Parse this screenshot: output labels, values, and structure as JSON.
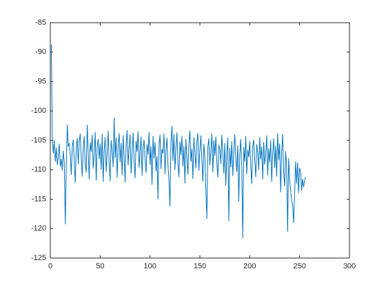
{
  "chart_data": {
    "type": "line",
    "x": [
      1,
      2,
      3,
      4,
      5,
      6,
      7,
      8,
      9,
      10,
      11,
      12,
      13,
      14,
      15,
      16,
      17,
      18,
      19,
      20,
      21,
      22,
      23,
      24,
      25,
      26,
      27,
      28,
      29,
      30,
      31,
      32,
      33,
      34,
      35,
      36,
      37,
      38,
      39,
      40,
      41,
      42,
      43,
      44,
      45,
      46,
      47,
      48,
      49,
      50,
      51,
      52,
      53,
      54,
      55,
      56,
      57,
      58,
      59,
      60,
      61,
      62,
      63,
      64,
      65,
      66,
      67,
      68,
      69,
      70,
      71,
      72,
      73,
      74,
      75,
      76,
      77,
      78,
      79,
      80,
      81,
      82,
      83,
      84,
      85,
      86,
      87,
      88,
      89,
      90,
      91,
      92,
      93,
      94,
      95,
      96,
      97,
      98,
      99,
      100,
      101,
      102,
      103,
      104,
      105,
      106,
      107,
      108,
      109,
      110,
      111,
      112,
      113,
      114,
      115,
      116,
      117,
      118,
      119,
      120,
      121,
      122,
      123,
      124,
      125,
      126,
      127,
      128,
      129,
      130,
      131,
      132,
      133,
      134,
      135,
      136,
      137,
      138,
      139,
      140,
      141,
      142,
      143,
      144,
      145,
      146,
      147,
      148,
      149,
      150,
      151,
      152,
      153,
      154,
      155,
      156,
      157,
      158,
      159,
      160,
      161,
      162,
      163,
      164,
      165,
      166,
      167,
      168,
      169,
      170,
      171,
      172,
      173,
      174,
      175,
      176,
      177,
      178,
      179,
      180,
      181,
      182,
      183,
      184,
      185,
      186,
      187,
      188,
      189,
      190,
      191,
      192,
      193,
      194,
      195,
      196,
      197,
      198,
      199,
      200,
      201,
      202,
      203,
      204,
      205,
      206,
      207,
      208,
      209,
      210,
      211,
      212,
      213,
      214,
      215,
      216,
      217,
      218,
      219,
      220,
      221,
      222,
      223,
      224,
      225,
      226,
      227,
      228,
      229,
      230,
      231,
      232,
      233,
      234,
      235,
      236,
      237,
      238,
      239,
      240,
      241,
      242,
      243,
      244,
      245,
      246,
      247,
      248,
      249,
      250,
      251,
      252,
      253,
      254,
      255,
      256
    ],
    "series": [
      {
        "color": "#0072bd",
        "values": [
          -88.7,
          -104.8,
          -107.2,
          -105.0,
          -108.6,
          -106.3,
          -109.1,
          -107.8,
          -105.6,
          -109.4,
          -108.2,
          -110.1,
          -106.8,
          -108.9,
          -119.2,
          -109.3,
          -102.4,
          -106.0,
          -105.5,
          -107.3,
          -110.8,
          -106.2,
          -104.9,
          -108.4,
          -112.2,
          -106.1,
          -104.7,
          -109.0,
          -105.2,
          -103.9,
          -107.8,
          -111.1,
          -106.5,
          -104.3,
          -108.9,
          -110.4,
          -102.4,
          -107.0,
          -111.6,
          -105.4,
          -106.9,
          -104.1,
          -109.7,
          -107.5,
          -103.6,
          -111.8,
          -106.2,
          -104.8,
          -108.1,
          -105.6,
          -109.9,
          -103.9,
          -112.0,
          -106.7,
          -104.5,
          -110.3,
          -107.1,
          -103.4,
          -108.8,
          -111.9,
          -105.0,
          -106.6,
          -109.5,
          -101.2,
          -107.9,
          -104.6,
          -111.3,
          -106.0,
          -103.8,
          -108.7,
          -105.5,
          -110.9,
          -104.2,
          -107.6,
          -112.1,
          -105.8,
          -103.3,
          -109.2,
          -106.4,
          -104.0,
          -110.6,
          -107.3,
          -103.7,
          -108.5,
          -111.4,
          -105.1,
          -106.9,
          -103.5,
          -109.6,
          -107.0,
          -104.4,
          -111.0,
          -106.3,
          -104.9,
          -108.2,
          -110.5,
          -105.7,
          -107.4,
          -103.6,
          -109.1,
          -106.1,
          -112.5,
          -104.3,
          -108.0,
          -105.3,
          -110.2,
          -107.7,
          -115.0,
          -105.9,
          -104.1,
          -109.8,
          -106.5,
          -107.2,
          -103.9,
          -110.7,
          -106.8,
          -104.6,
          -109.3,
          -111.9,
          -116.2,
          -105.4,
          -102.6,
          -108.4,
          -104.0,
          -110.0,
          -106.2,
          -103.7,
          -108.9,
          -111.2,
          -105.2,
          -107.5,
          -104.3,
          -109.4,
          -106.0,
          -112.3,
          -104.8,
          -107.9,
          -110.8,
          -105.7,
          -103.4,
          -108.6,
          -106.4,
          -111.5,
          -104.5,
          -107.0,
          -109.7,
          -105.3,
          -103.8,
          -110.1,
          -106.7,
          -104.2,
          -108.3,
          -112.0,
          -105.6,
          -107.8,
          -113.5,
          -118.3,
          -106.1,
          -104.7,
          -109.2,
          -106.9,
          -103.9,
          -110.4,
          -105.0,
          -107.6,
          -104.4,
          -108.8,
          -111.3,
          -105.8,
          -106.5,
          -109.0,
          -104.1,
          -107.3,
          -110.6,
          -105.5,
          -112.6,
          -107.1,
          -104.6,
          -118.7,
          -106.3,
          -109.5,
          -105.2,
          -111.0,
          -106.8,
          -104.0,
          -108.1,
          -110.3,
          -105.9,
          -115.4,
          -107.4,
          -104.8,
          -109.9,
          -121.6,
          -106.2,
          -108.6,
          -104.3,
          -110.7,
          -106.6,
          -107.8,
          -105.1,
          -109.3,
          -112.4,
          -106.0,
          -104.9,
          -108.4,
          -111.2,
          -105.7,
          -107.0,
          -110.0,
          -104.5,
          -108.2,
          -106.1,
          -111.6,
          -105.3,
          -109.1,
          -107.5,
          -104.2,
          -110.9,
          -106.4,
          -108.7,
          -105.0,
          -112.0,
          -107.2,
          -104.7,
          -109.6,
          -106.0,
          -111.1,
          -103.8,
          -108.3,
          -105.6,
          -113.8,
          -107.0,
          -104.0,
          -110.5,
          -112.8,
          -106.9,
          -109.4,
          -120.5,
          -108.1,
          -111.7,
          -113.4,
          -115.2,
          -116.0,
          -119.0,
          -114.1,
          -108.6,
          -112.3,
          -108.8,
          -113.9,
          -109.7,
          -110.4,
          -113.5,
          -111.6,
          -112.9,
          -111.8,
          -111.2
        ]
      }
    ],
    "xlim": [
      0,
      300
    ],
    "xticks": [
      0,
      50,
      100,
      150,
      200,
      250,
      300
    ],
    "ylim": [
      -125,
      -85
    ],
    "yticks": [
      -125,
      -120,
      -115,
      -110,
      -105,
      -100,
      -95,
      -90,
      -85
    ],
    "grid": false
  }
}
